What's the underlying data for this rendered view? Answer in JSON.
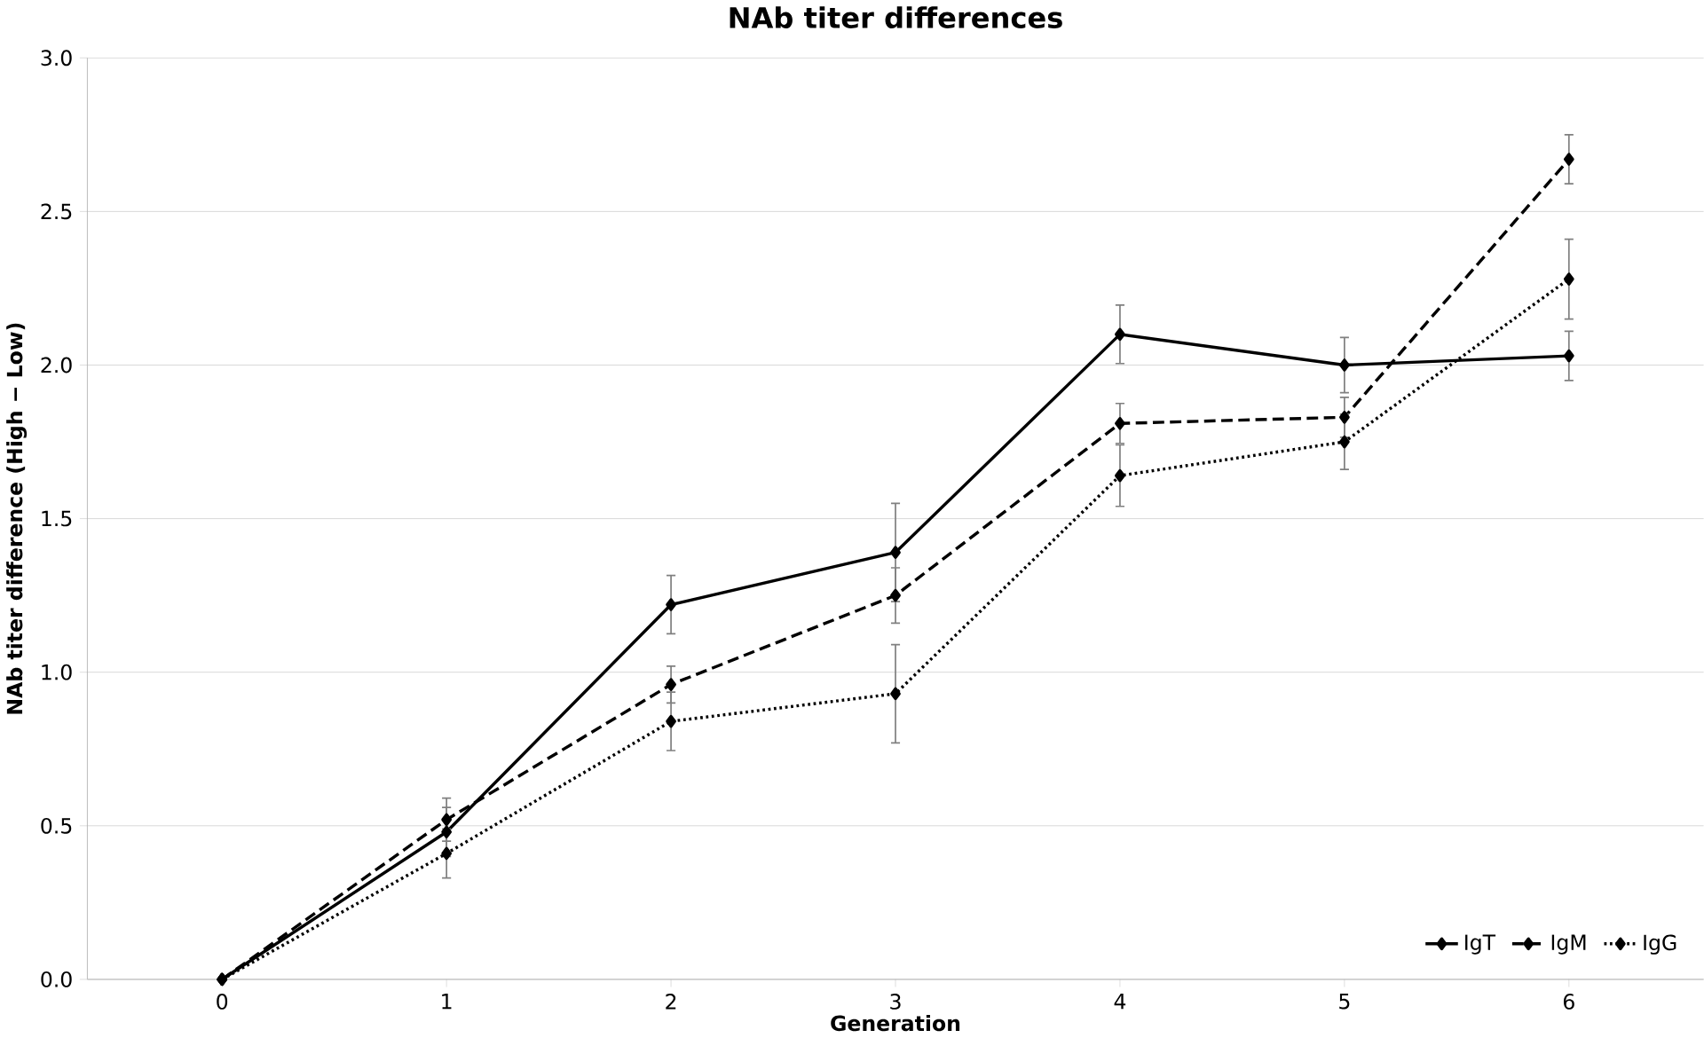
{
  "chart_data": {
    "type": "line",
    "title": "NAb titer differences",
    "xlabel": "Generation",
    "ylabel": "NAb titer difference (High − Low)",
    "categories": [
      "0",
      "1",
      "2",
      "3",
      "4",
      "5",
      "6"
    ],
    "series": [
      {
        "name": "IgT",
        "color": "#000000",
        "line_style": "solid",
        "values": [
          0.0,
          0.48,
          1.22,
          1.39,
          2.1,
          2.0,
          2.03
        ],
        "errors": [
          null,
          0.08,
          0.095,
          0.16,
          0.095,
          0.09,
          0.08
        ]
      },
      {
        "name": "IgM",
        "color": "#000000",
        "line_style": "dashed",
        "values": [
          0.0,
          0.52,
          0.96,
          1.25,
          1.81,
          1.83,
          2.67
        ],
        "errors": [
          null,
          0.07,
          0.06,
          0.09,
          0.065,
          0.065,
          0.08
        ]
      },
      {
        "name": "IgG",
        "color": "#000000",
        "line_style": "dotted",
        "values": [
          0.0,
          0.41,
          0.84,
          0.93,
          1.64,
          1.75,
          2.28
        ],
        "errors": [
          null,
          0.08,
          0.095,
          0.16,
          0.1,
          0.09,
          0.13
        ]
      }
    ],
    "ylim": [
      0,
      3
    ],
    "yticks": [
      {
        "value": 0,
        "label": "0.0"
      },
      {
        "value": 0.5,
        "label": "0.5"
      },
      {
        "value": 1,
        "label": "1.0"
      },
      {
        "value": 1.5,
        "label": "1.5"
      },
      {
        "value": 2,
        "label": "2.0"
      },
      {
        "value": 2.5,
        "label": "2.5"
      },
      {
        "value": 3,
        "label": "3.0"
      }
    ],
    "grid": "y",
    "legend": "bottom right",
    "marker": "diamond"
  }
}
